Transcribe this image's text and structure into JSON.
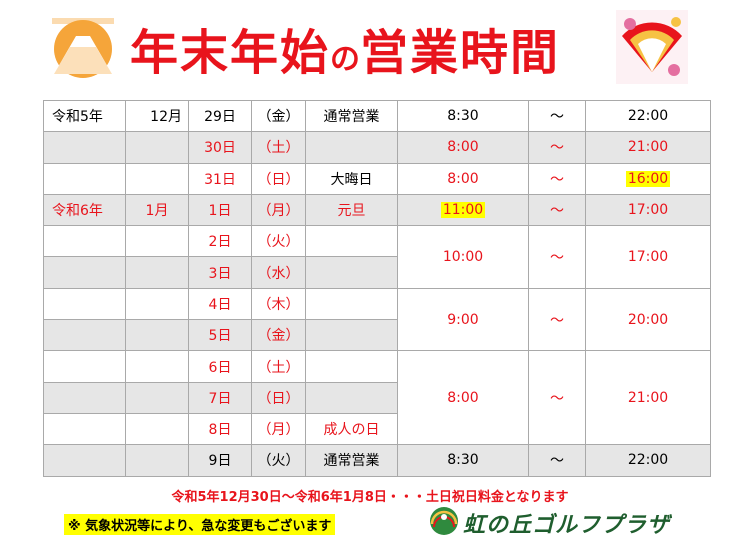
{
  "title": {
    "main": "年末年始",
    "particle": "の",
    "tail": "営業時間"
  },
  "rows": [
    {
      "era": "令和5年",
      "month": "12月",
      "day": "29日",
      "dow": "（金）",
      "note": "通常営業",
      "open": "8:30",
      "sep": "～",
      "close": "22:00"
    },
    {
      "day": "30日",
      "dow": "（土）",
      "open": "8:00",
      "sep": "～",
      "close": "21:00"
    },
    {
      "day": "31日",
      "dow": "（日）",
      "note": "大晦日",
      "open": "8:00",
      "sep": "～",
      "close": "16:00"
    },
    {
      "era": "令和6年",
      "month": "1月",
      "day": "1日",
      "dow": "（月）",
      "note": "元旦",
      "open": "11:00",
      "sep": "～",
      "close": "17:00"
    },
    {
      "day": "2日",
      "dow": "（火）"
    },
    {
      "day": "3日",
      "dow": "（水）"
    },
    {
      "day": "4日",
      "dow": "（木）"
    },
    {
      "day": "5日",
      "dow": "（金）"
    },
    {
      "day": "6日",
      "dow": "（土）"
    },
    {
      "day": "7日",
      "dow": "（日）"
    },
    {
      "day": "8日",
      "dow": "（月）",
      "note": "成人の日"
    },
    {
      "day": "9日",
      "dow": "（火）",
      "note": "通常営業",
      "open": "8:30",
      "sep": "～",
      "close": "22:00"
    }
  ],
  "groups": [
    {
      "open": "10:00",
      "sep": "～",
      "close": "17:00"
    },
    {
      "open": "9:00",
      "sep": "～",
      "close": "20:00"
    },
    {
      "open": "8:00",
      "sep": "～",
      "close": "21:00"
    }
  ],
  "notes": {
    "pricing": "令和5年12月30日～令和6年1月8日・・・土日祝日料金となります",
    "warning": "※ 気象状況等により、急な変更もございます"
  },
  "logo_text": "虹の丘ゴルフプラザ",
  "colors": {
    "red": "#e8141c",
    "highlight": "#ffff00",
    "gray_row": "#e6e6e6",
    "logo_green": "#1f5e2e"
  }
}
